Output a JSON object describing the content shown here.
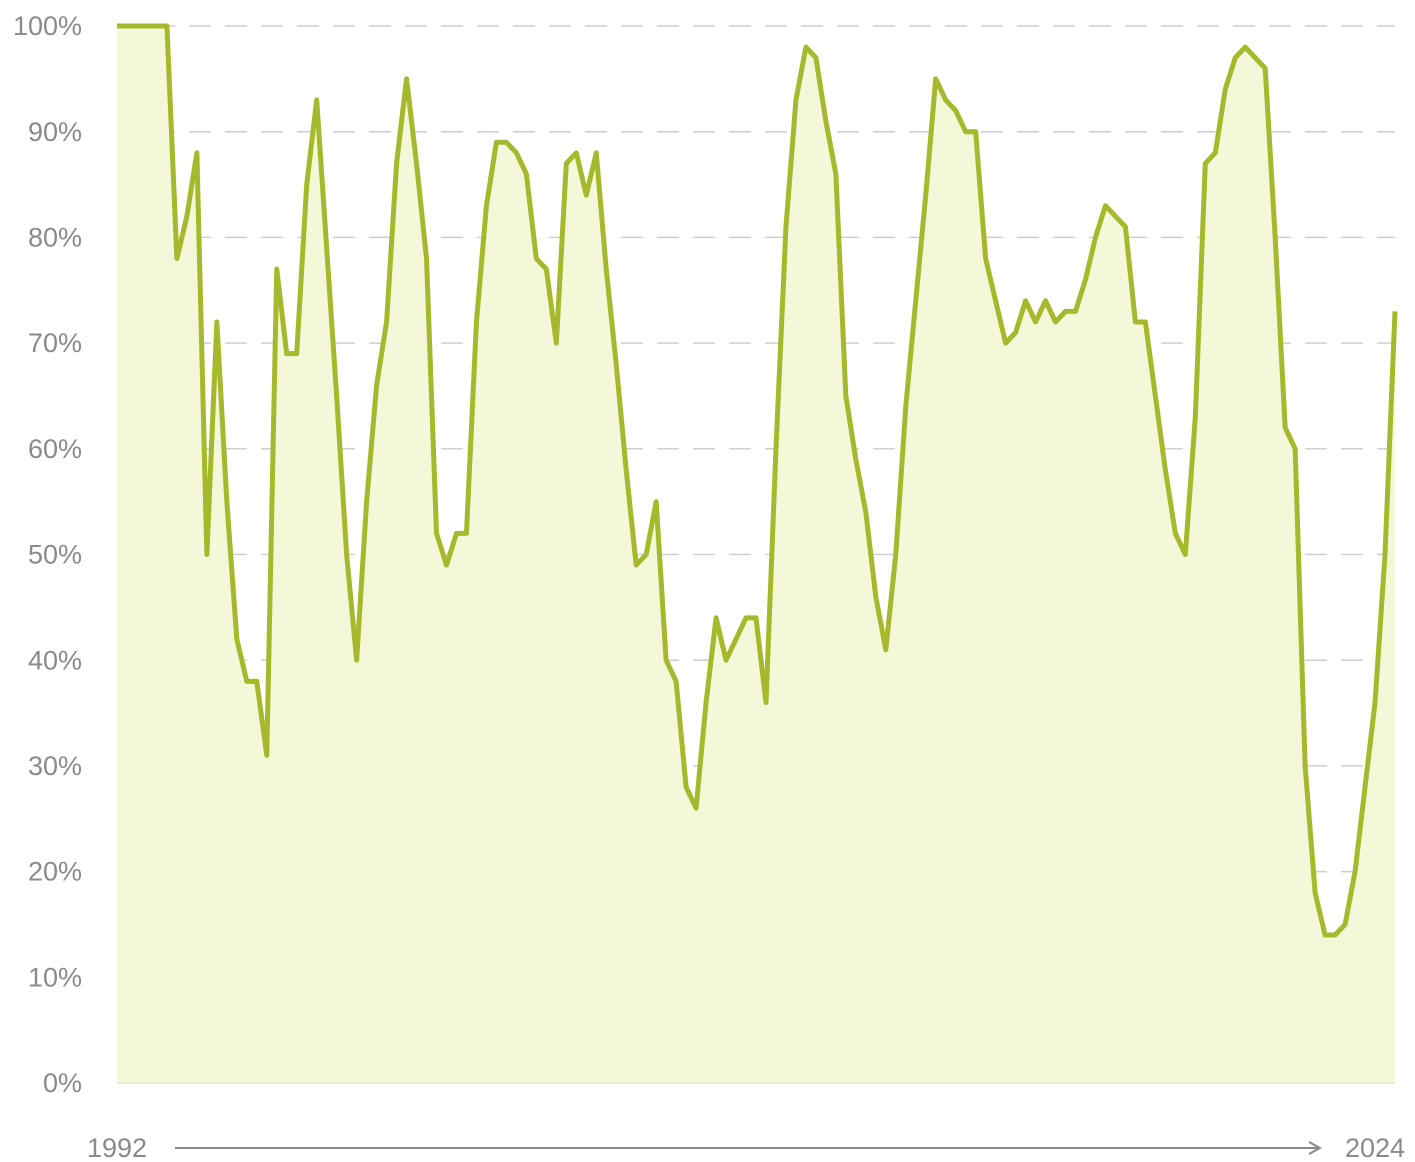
{
  "chart_data": {
    "type": "area",
    "categories": [
      "1992",
      null,
      null,
      null,
      null,
      null,
      null,
      null,
      null,
      null,
      null,
      null,
      null,
      null,
      null,
      null,
      null,
      null,
      null,
      null,
      null,
      null,
      null,
      null,
      null,
      null,
      null,
      null,
      null,
      null,
      null,
      null,
      null,
      null,
      null,
      null,
      null,
      null,
      null,
      null,
      null,
      null,
      null,
      null,
      null,
      null,
      null,
      null,
      null,
      null,
      null,
      null,
      null,
      null,
      null,
      null,
      null,
      null,
      null,
      null,
      null,
      null,
      null,
      null,
      null,
      null,
      null,
      null,
      null,
      null,
      null,
      null,
      null,
      null,
      null,
      null,
      null,
      null,
      null,
      null,
      null,
      null,
      null,
      null,
      null,
      null,
      null,
      null,
      null,
      null,
      null,
      null,
      null,
      null,
      null,
      null,
      null,
      null,
      null,
      null,
      null,
      null,
      null,
      null,
      null,
      null,
      null,
      null,
      null,
      null,
      null,
      null,
      null,
      null,
      null,
      null,
      null,
      null,
      null,
      null,
      null,
      null,
      null,
      null,
      null,
      null,
      null,
      null,
      "2024"
    ],
    "values": [
      100,
      100,
      100,
      100,
      100,
      100,
      78,
      82,
      88,
      50,
      72,
      55,
      42,
      38,
      38,
      31,
      77,
      69,
      69,
      85,
      93,
      79,
      65,
      50,
      40,
      55,
      66,
      72,
      87,
      95,
      87,
      78,
      52,
      49,
      52,
      52,
      72,
      83,
      89,
      89,
      88,
      86,
      78,
      77,
      70,
      87,
      88,
      84,
      88,
      77,
      68,
      58,
      49,
      50,
      55,
      40,
      38,
      28,
      26,
      36,
      44,
      40,
      42,
      44,
      44,
      36,
      60,
      81,
      93,
      98,
      97,
      91,
      86,
      65,
      59,
      54,
      46,
      41,
      50,
      64,
      74,
      84,
      95,
      93,
      92,
      90,
      90,
      78,
      74,
      70,
      71,
      74,
      72,
      74,
      72,
      73,
      73,
      76,
      80,
      83,
      82,
      81,
      72,
      72,
      65,
      58,
      52,
      50,
      63,
      87,
      88,
      94,
      97,
      98,
      97,
      96,
      80,
      62,
      60,
      30,
      18,
      14,
      14,
      15,
      20,
      28,
      36,
      50,
      73
    ],
    "color": "#a6b82b",
    "fill_color": "#f5f7d9",
    "ylim": [
      0,
      100
    ],
    "yticks": [
      {
        "value": 0,
        "label": "0%"
      },
      {
        "value": 10,
        "label": "10%"
      },
      {
        "value": 20,
        "label": "20%"
      },
      {
        "value": 30,
        "label": "30%"
      },
      {
        "value": 40,
        "label": "40%"
      },
      {
        "value": 50,
        "label": "50%"
      },
      {
        "value": 60,
        "label": "60%"
      },
      {
        "value": 70,
        "label": "70%"
      },
      {
        "value": 80,
        "label": "80%"
      },
      {
        "value": 90,
        "label": "90%"
      },
      {
        "value": 100,
        "label": "100%"
      }
    ],
    "grid": true
  }
}
